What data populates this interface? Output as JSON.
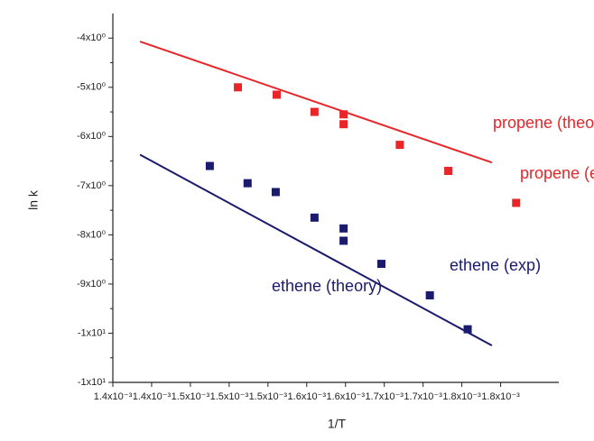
{
  "chart_data": {
    "type": "scatter",
    "x_label": "1/T",
    "y_label": "ln k",
    "xlim": [
      0.0014,
      0.00186
    ],
    "ylim": [
      -11,
      -3.5
    ],
    "xticks": [
      {
        "value": 0.0014,
        "label": "1.4x10⁻³"
      },
      {
        "value": 0.00144,
        "label": "1.4x10⁻³"
      },
      {
        "value": 0.00148,
        "label": "1.5x10⁻³"
      },
      {
        "value": 0.00152,
        "label": "1.5x10⁻³"
      },
      {
        "value": 0.00156,
        "label": "1.5x10⁻³"
      },
      {
        "value": 0.0016,
        "label": "1.6x10⁻³"
      },
      {
        "value": 0.00164,
        "label": "1.6x10⁻³"
      },
      {
        "value": 0.00168,
        "label": "1.7x10⁻³"
      },
      {
        "value": 0.00172,
        "label": "1.7x10⁻³"
      },
      {
        "value": 0.00176,
        "label": "1.8x10⁻³"
      },
      {
        "value": 0.0018,
        "label": "1.8x10⁻³"
      }
    ],
    "yticks": [
      {
        "value": -4,
        "label": "-4x10⁰"
      },
      {
        "value": -5,
        "label": "-5x10⁰"
      },
      {
        "value": -6,
        "label": "-6x10⁰"
      },
      {
        "value": -7,
        "label": "-7x10⁰"
      },
      {
        "value": -8,
        "label": "-8x10⁰"
      },
      {
        "value": -9,
        "label": "-9x10⁰"
      },
      {
        "value": -10,
        "label": "-1x10¹"
      },
      {
        "value": -11,
        "label": "-1x10¹"
      }
    ],
    "series": [
      {
        "name": "propene (theory)",
        "mode": "line",
        "color": "#e8262a",
        "x": [
          0.001428,
          0.001791
        ],
        "values": [
          -4.07,
          -6.53
        ]
      },
      {
        "name": "propene (exp)",
        "mode": "markers",
        "color": "#e8262a",
        "x": [
          0.001529,
          0.001569,
          0.001608,
          0.001638,
          0.001638,
          0.001696,
          0.001746,
          0.001816
        ],
        "values": [
          -5.0,
          -5.15,
          -5.5,
          -5.55,
          -5.75,
          -6.17,
          -6.7,
          -7.35
        ]
      },
      {
        "name": "ethene (theory)",
        "mode": "line",
        "color": "#1a1a6e",
        "x": [
          0.001428,
          0.001791
        ],
        "values": [
          -6.37,
          -10.25
        ]
      },
      {
        "name": "ethene (exp)",
        "mode": "markers",
        "color": "#1a1a6e",
        "x": [
          0.0015,
          0.001539,
          0.001568,
          0.001608,
          0.001638,
          0.001638,
          0.001677,
          0.001727,
          0.001766
        ],
        "values": [
          -6.6,
          -6.95,
          -7.13,
          -7.65,
          -7.87,
          -8.12,
          -8.59,
          -9.23,
          -9.92
        ]
      }
    ]
  }
}
